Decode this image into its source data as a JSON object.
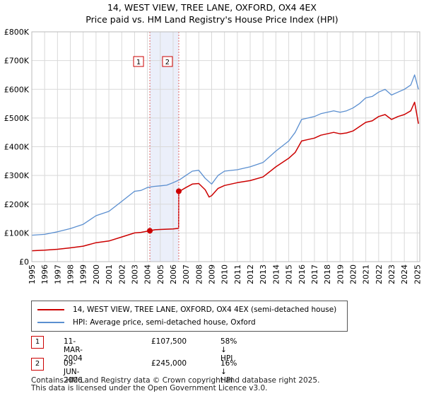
{
  "title": {
    "line1": "14, WEST VIEW, TREE LANE, OXFORD, OX4 4EX",
    "line2": "Price paid vs. HM Land Registry's House Price Index (HPI)"
  },
  "legend": {
    "property_label": "14, WEST VIEW, TREE LANE, OXFORD, OX4 4EX (semi-detached house)",
    "hpi_label": "HPI: Average price, semi-detached house, Oxford"
  },
  "colors": {
    "property": "#cc0000",
    "hpi": "#5b8fd0",
    "shade": "#dde5f7",
    "grid": "#d9d9d9"
  },
  "sales": [
    {
      "num": "1",
      "date": "11-MAR-2004",
      "price": "£107,500",
      "hpi_rel": "58% ↓ HPI"
    },
    {
      "num": "2",
      "date": "09-JUN-2006",
      "price": "£245,000",
      "hpi_rel": "16% ↓ HPI"
    }
  ],
  "footer": {
    "line1": "Contains HM Land Registry data © Crown copyright and database right 2025.",
    "line2": "This data is licensed under the Open Government Licence v3.0."
  },
  "chart_data": {
    "type": "line",
    "title": "14, WEST VIEW, TREE LANE, OXFORD, OX4 4EX — Price paid vs. HM Land Registry's House Price Index (HPI)",
    "xlabel": "",
    "ylabel": "",
    "xlim": [
      1995,
      2025.2
    ],
    "ylim": [
      0,
      800000
    ],
    "x_ticks": [
      1995,
      1996,
      1997,
      1998,
      1999,
      2000,
      2001,
      2002,
      2003,
      2004,
      2005,
      2006,
      2007,
      2008,
      2009,
      2010,
      2011,
      2012,
      2013,
      2014,
      2015,
      2016,
      2017,
      2018,
      2019,
      2020,
      2021,
      2022,
      2023,
      2024,
      2025
    ],
    "y_ticks": [
      0,
      100000,
      200000,
      300000,
      400000,
      500000,
      600000,
      700000,
      800000
    ],
    "y_tick_labels": [
      "£0",
      "£100K",
      "£200K",
      "£300K",
      "£400K",
      "£500K",
      "£600K",
      "£700K",
      "£800K"
    ],
    "shaded_region": [
      2004.19,
      2006.44
    ],
    "series": [
      {
        "name": "HPI: Average price, semi-detached house, Oxford",
        "color": "#5b8fd0",
        "points": [
          [
            1995,
            92000
          ],
          [
            1996,
            95000
          ],
          [
            1997,
            104000
          ],
          [
            1998,
            115000
          ],
          [
            1999,
            130000
          ],
          [
            2000,
            160000
          ],
          [
            2001,
            175000
          ],
          [
            2002,
            210000
          ],
          [
            2003,
            245000
          ],
          [
            2003.5,
            248000
          ],
          [
            2004,
            258000
          ],
          [
            2004.5,
            262000
          ],
          [
            2005,
            264000
          ],
          [
            2005.5,
            266000
          ],
          [
            2006,
            275000
          ],
          [
            2006.5,
            285000
          ],
          [
            2007,
            300000
          ],
          [
            2007.5,
            315000
          ],
          [
            2008,
            318000
          ],
          [
            2008.5,
            290000
          ],
          [
            2009,
            270000
          ],
          [
            2009.5,
            300000
          ],
          [
            2010,
            315000
          ],
          [
            2011,
            320000
          ],
          [
            2012,
            330000
          ],
          [
            2013,
            345000
          ],
          [
            2014,
            385000
          ],
          [
            2015,
            420000
          ],
          [
            2015.5,
            450000
          ],
          [
            2016,
            495000
          ],
          [
            2016.5,
            500000
          ],
          [
            2017,
            505000
          ],
          [
            2017.5,
            515000
          ],
          [
            2018,
            520000
          ],
          [
            2018.5,
            525000
          ],
          [
            2019,
            520000
          ],
          [
            2019.5,
            525000
          ],
          [
            2020,
            535000
          ],
          [
            2020.5,
            550000
          ],
          [
            2021,
            570000
          ],
          [
            2021.5,
            575000
          ],
          [
            2022,
            590000
          ],
          [
            2022.5,
            600000
          ],
          [
            2023,
            580000
          ],
          [
            2023.5,
            590000
          ],
          [
            2024,
            600000
          ],
          [
            2024.5,
            615000
          ],
          [
            2024.8,
            650000
          ],
          [
            2025.1,
            600000
          ]
        ]
      },
      {
        "name": "14, WEST VIEW, TREE LANE, OXFORD, OX4 4EX (semi-detached house)",
        "color": "#cc0000",
        "points": [
          [
            1995,
            38000
          ],
          [
            1996,
            40000
          ],
          [
            1997,
            43000
          ],
          [
            1998,
            48000
          ],
          [
            1999,
            54000
          ],
          [
            2000,
            66000
          ],
          [
            2001,
            72000
          ],
          [
            2002,
            86000
          ],
          [
            2003,
            100000
          ],
          [
            2003.5,
            102000
          ],
          [
            2004.19,
            107500
          ],
          [
            2004.6,
            111000
          ],
          [
            2005,
            112000
          ],
          [
            2005.5,
            113000
          ],
          [
            2006,
            114000
          ],
          [
            2006.43,
            116000
          ],
          [
            2006.44,
            245000
          ],
          [
            2006.7,
            250000
          ],
          [
            2007,
            258000
          ],
          [
            2007.5,
            270000
          ],
          [
            2008,
            272000
          ],
          [
            2008.5,
            250000
          ],
          [
            2008.8,
            225000
          ],
          [
            2009,
            230000
          ],
          [
            2009.5,
            255000
          ],
          [
            2010,
            265000
          ],
          [
            2011,
            275000
          ],
          [
            2012,
            282000
          ],
          [
            2013,
            295000
          ],
          [
            2014,
            330000
          ],
          [
            2015,
            360000
          ],
          [
            2015.5,
            380000
          ],
          [
            2016,
            420000
          ],
          [
            2016.5,
            425000
          ],
          [
            2017,
            430000
          ],
          [
            2017.5,
            440000
          ],
          [
            2018,
            445000
          ],
          [
            2018.5,
            450000
          ],
          [
            2019,
            445000
          ],
          [
            2019.5,
            448000
          ],
          [
            2020,
            455000
          ],
          [
            2020.5,
            470000
          ],
          [
            2021,
            485000
          ],
          [
            2021.5,
            490000
          ],
          [
            2022,
            505000
          ],
          [
            2022.5,
            512000
          ],
          [
            2023,
            495000
          ],
          [
            2023.5,
            505000
          ],
          [
            2024,
            512000
          ],
          [
            2024.5,
            525000
          ],
          [
            2024.8,
            555000
          ],
          [
            2025.1,
            480000
          ]
        ]
      }
    ],
    "markers": [
      {
        "label": "1",
        "x": 2004.19,
        "y": 107500
      },
      {
        "label": "2",
        "x": 2006.44,
        "y": 245000
      }
    ]
  }
}
